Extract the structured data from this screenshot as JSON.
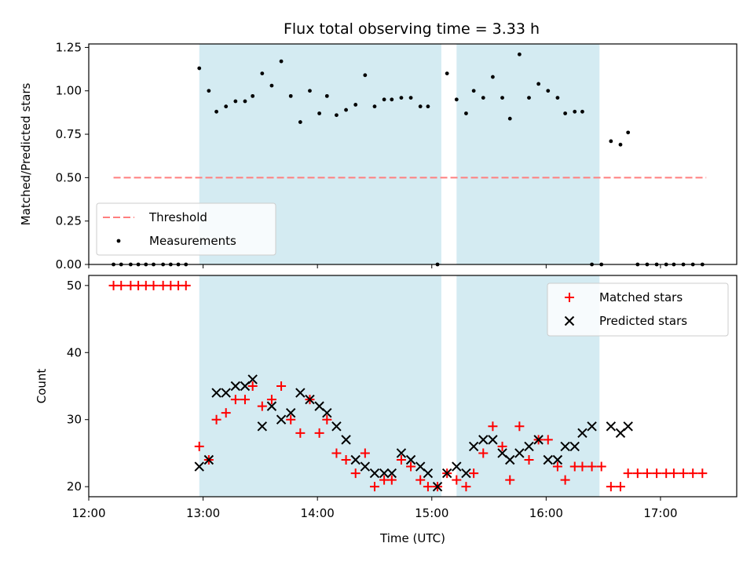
{
  "title": "Flux total observing time = 3.33 h",
  "colors": {
    "shade": "#add8e6",
    "threshold": "#ff7f7f",
    "measurement": "#000000",
    "matched": "#ff0000",
    "predicted": "#000000"
  },
  "chart_data": [
    {
      "type": "scatter",
      "panel": "top",
      "ylabel": "Matched/Predicted stars",
      "xlabel": "",
      "xlim": [
        "12:00",
        "17:40"
      ],
      "ylim": [
        0,
        1.27
      ],
      "yticks": [
        "0.00",
        "0.25",
        "0.50",
        "0.75",
        "1.00",
        "1.25"
      ],
      "xticks": [
        "12:00",
        "13:00",
        "14:00",
        "15:00",
        "16:00",
        "17:00"
      ],
      "shaded_regions": [
        [
          "12:58",
          "15:05"
        ],
        [
          "15:13",
          "16:28"
        ]
      ],
      "legend": {
        "position": "lower-left",
        "entries": [
          "Threshold",
          "Measurements"
        ]
      },
      "threshold": {
        "name": "Threshold",
        "value": 0.5,
        "x_start": "12:13",
        "x_end": "17:24"
      },
      "series": [
        {
          "name": "Measurements",
          "x": [
            "12:13",
            "12:17",
            "12:22",
            "12:26",
            "12:30",
            "12:34",
            "12:39",
            "12:43",
            "12:47",
            "12:51",
            "12:58",
            "13:03",
            "13:07",
            "13:12",
            "13:17",
            "13:22",
            "13:26",
            "13:31",
            "13:36",
            "13:41",
            "13:46",
            "13:51",
            "13:56",
            "14:01",
            "14:05",
            "14:10",
            "14:15",
            "14:20",
            "14:25",
            "14:30",
            "14:35",
            "14:39",
            "14:44",
            "14:49",
            "14:54",
            "14:58",
            "15:03",
            "15:08",
            "15:13",
            "15:18",
            "15:22",
            "15:27",
            "15:32",
            "15:37",
            "15:41",
            "15:46",
            "15:51",
            "15:56",
            "16:01",
            "16:06",
            "16:10",
            "16:15",
            "16:19",
            "16:24",
            "16:29",
            "16:34",
            "16:39",
            "16:43",
            "16:48",
            "16:53",
            "16:58",
            "17:03",
            "17:07",
            "17:12",
            "17:17",
            "17:22"
          ],
          "values": [
            0,
            0,
            0,
            0,
            0,
            0,
            0,
            0,
            0,
            0,
            1.13,
            1.0,
            0.88,
            0.91,
            0.94,
            0.94,
            0.97,
            1.1,
            1.03,
            1.17,
            0.97,
            0.82,
            1.0,
            0.87,
            0.97,
            0.86,
            0.89,
            0.92,
            1.09,
            0.91,
            0.95,
            0.95,
            0.96,
            0.96,
            0.91,
            0.91,
            0,
            1.1,
            0.95,
            0.87,
            1.0,
            0.96,
            1.08,
            0.96,
            0.84,
            1.21,
            0.96,
            1.04,
            1.0,
            0.96,
            0.87,
            0.88,
            0.88,
            0,
            0,
            0.71,
            0.69,
            0.76,
            0,
            0,
            0,
            0,
            0,
            0,
            0,
            0
          ]
        }
      ]
    },
    {
      "type": "scatter",
      "panel": "bottom",
      "ylabel": "Count",
      "xlabel": "Time (UTC)",
      "xlim": [
        "12:00",
        "17:40"
      ],
      "ylim": [
        18.5,
        51.5
      ],
      "yticks": [
        "20",
        "30",
        "40",
        "50"
      ],
      "xticks": [
        "12:00",
        "13:00",
        "14:00",
        "15:00",
        "16:00",
        "17:00"
      ],
      "shaded_regions": [
        [
          "12:58",
          "15:05"
        ],
        [
          "15:13",
          "16:28"
        ]
      ],
      "legend": {
        "position": "upper-right",
        "entries": [
          "Matched stars",
          "Predicted stars"
        ]
      },
      "series": [
        {
          "name": "Matched stars",
          "marker": "+",
          "x": [
            "12:13",
            "12:17",
            "12:22",
            "12:26",
            "12:30",
            "12:34",
            "12:39",
            "12:43",
            "12:47",
            "12:51",
            "12:58",
            "13:03",
            "13:07",
            "13:12",
            "13:17",
            "13:22",
            "13:26",
            "13:31",
            "13:36",
            "13:41",
            "13:46",
            "13:51",
            "13:56",
            "14:01",
            "14:05",
            "14:10",
            "14:15",
            "14:20",
            "14:25",
            "14:30",
            "14:35",
            "14:39",
            "14:44",
            "14:49",
            "14:54",
            "14:58",
            "15:03",
            "15:08",
            "15:13",
            "15:18",
            "15:22",
            "15:27",
            "15:32",
            "15:37",
            "15:41",
            "15:46",
            "15:51",
            "15:56",
            "16:01",
            "16:06",
            "16:10",
            "16:15",
            "16:19",
            "16:24",
            "16:29",
            "16:34",
            "16:39",
            "16:43",
            "16:48",
            "16:53",
            "16:58",
            "17:03",
            "17:07",
            "17:12",
            "17:17",
            "17:22"
          ],
          "values": [
            50,
            50,
            50,
            50,
            50,
            50,
            50,
            50,
            50,
            50,
            26,
            24,
            30,
            31,
            33,
            33,
            35,
            32,
            33,
            35,
            30,
            28,
            33,
            28,
            30,
            25,
            24,
            22,
            25,
            20,
            21,
            21,
            24,
            23,
            21,
            20,
            20,
            22,
            21,
            20,
            22,
            25,
            29,
            26,
            21,
            29,
            24,
            27,
            27,
            23,
            21,
            23,
            23,
            23,
            23,
            20,
            20,
            22,
            22,
            22,
            22,
            22,
            22,
            22,
            22,
            22
          ]
        },
        {
          "name": "Predicted stars",
          "marker": "x",
          "x": [
            "12:58",
            "13:03",
            "13:07",
            "13:12",
            "13:17",
            "13:22",
            "13:26",
            "13:31",
            "13:36",
            "13:41",
            "13:46",
            "13:51",
            "13:56",
            "14:01",
            "14:05",
            "14:10",
            "14:15",
            "14:20",
            "14:25",
            "14:30",
            "14:35",
            "14:39",
            "14:44",
            "14:49",
            "14:54",
            "14:58",
            "15:03",
            "15:08",
            "15:13",
            "15:18",
            "15:22",
            "15:27",
            "15:32",
            "15:37",
            "15:41",
            "15:46",
            "15:51",
            "15:56",
            "16:01",
            "16:06",
            "16:10",
            "16:15",
            "16:19",
            "16:24",
            "16:34",
            "16:39",
            "16:43"
          ],
          "values": [
            23,
            24,
            34,
            34,
            35,
            35,
            36,
            29,
            32,
            30,
            31,
            34,
            33,
            32,
            31,
            29,
            27,
            24,
            23,
            22,
            22,
            22,
            25,
            24,
            23,
            22,
            20,
            22,
            23,
            22,
            26,
            27,
            27,
            25,
            24,
            25,
            26,
            27,
            24,
            24,
            26,
            26,
            28,
            29,
            29,
            28,
            29
          ]
        }
      ]
    }
  ]
}
